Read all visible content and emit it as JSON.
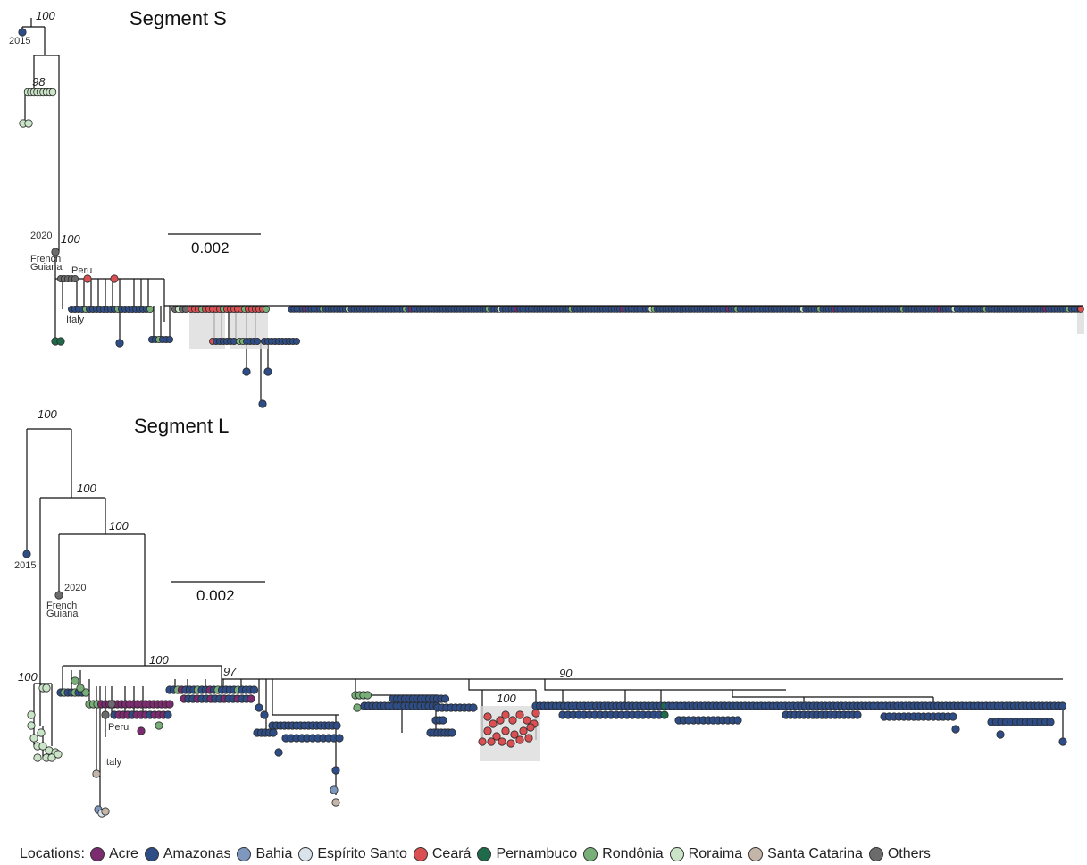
{
  "colors": {
    "Acre": "#7b2b6e",
    "Amazonas": "#2e4d86",
    "Bahia": "#7d97be",
    "Espirito Santo": "#d9e3ec",
    "Ceara": "#d94f52",
    "Pernambuco": "#1f6a4a",
    "Rondonia": "#78ae78",
    "Roraima": "#c9e4c6",
    "Santa Catarina": "#c3b5a8",
    "Others": "#6b6b6b"
  },
  "segment_s": {
    "title": "Segment S",
    "scale_label": "0.002",
    "bootstrap": [
      "100",
      "98",
      "100"
    ],
    "year_labels": [
      "2015",
      "2020"
    ],
    "place_labels": [
      "French",
      "Guiana",
      "Peru",
      "Italy"
    ]
  },
  "segment_l": {
    "title": "Segment L",
    "scale_label": "0.002",
    "bootstrap": [
      "100",
      "100",
      "100",
      "100",
      "100",
      "97",
      "90",
      "100"
    ],
    "year_labels": [
      "2015",
      "2020"
    ],
    "place_labels": [
      "French",
      "Guiana",
      "Peru",
      "Italy"
    ]
  },
  "legend": {
    "title": "Locations:",
    "items": [
      {
        "label": "Acre",
        "color": "#7b2b6e"
      },
      {
        "label": "Amazonas",
        "color": "#2e4d86"
      },
      {
        "label": "Bahia",
        "color": "#7d97be"
      },
      {
        "label": "Espírito Santo",
        "color": "#d9e3ec"
      },
      {
        "label": "Ceará",
        "color": "#d94f52"
      },
      {
        "label": "Pernambuco",
        "color": "#1f6a4a"
      },
      {
        "label": "Rondônia",
        "color": "#78ae78"
      },
      {
        "label": "Roraima",
        "color": "#c9e4c6"
      },
      {
        "label": "Santa Catarina",
        "color": "#c3b5a8"
      },
      {
        "label": "Others",
        "color": "#6b6b6b"
      }
    ]
  }
}
